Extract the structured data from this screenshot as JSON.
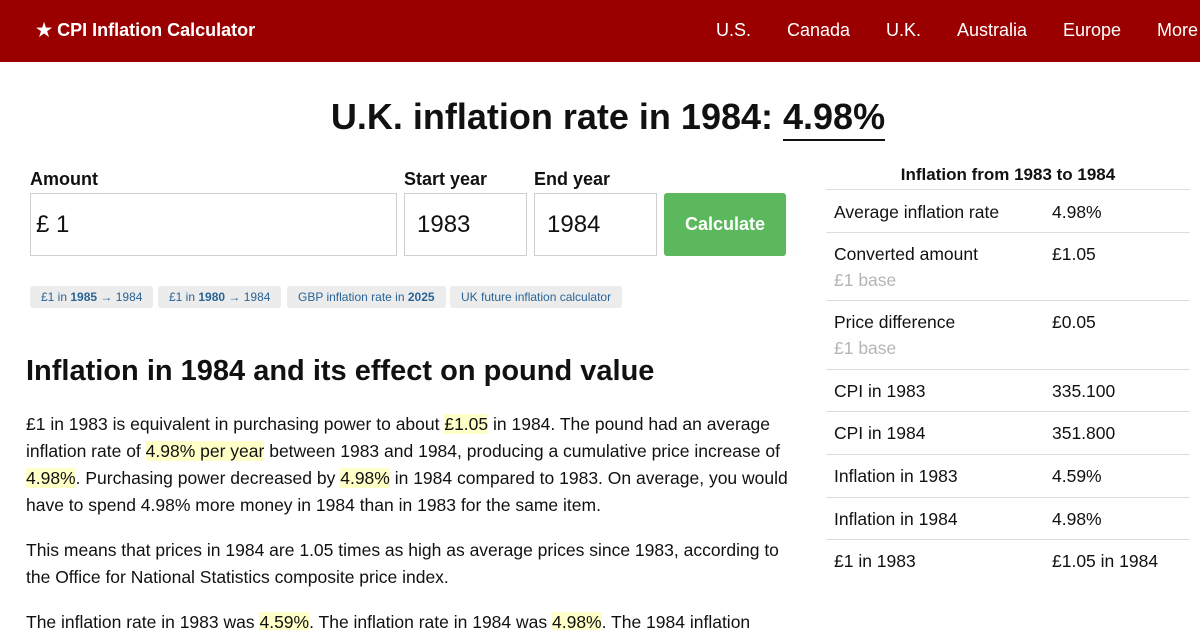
{
  "header": {
    "brand": "★ CPI Inflation Calculator",
    "nav": [
      "U.S.",
      "Canada",
      "U.K.",
      "Australia",
      "Europe",
      "More"
    ]
  },
  "headline": {
    "prefix": "U.K. inflation rate in 1984: ",
    "rate": "4.98%"
  },
  "form": {
    "amount_label": "Amount",
    "amount_value": "£ 1",
    "start_label": "Start year",
    "start_value": "1983",
    "end_label": "End year",
    "end_value": "1984",
    "calculate": "Calculate"
  },
  "chips": [
    {
      "pre": "£1 in ",
      "bold": "1985",
      "post": " → 1984"
    },
    {
      "pre": "£1 in ",
      "bold": "1980",
      "post": " → 1984"
    },
    {
      "pre": "GBP inflation rate in ",
      "bold": "2025",
      "post": ""
    },
    {
      "pre": "UK future inflation calculator",
      "bold": "",
      "post": ""
    }
  ],
  "article": {
    "title": "Inflation in 1984 and its effect on pound value",
    "p1": [
      {
        "t": "£1 in 1983 is equivalent in purchasing power to about ",
        "hl": false
      },
      {
        "t": "£1.05",
        "hl": true
      },
      {
        "t": " in 1984. The pound had an average inflation rate of ",
        "hl": false
      },
      {
        "t": "4.98% per year",
        "hl": true
      },
      {
        "t": " between 1983 and 1984, producing a cumulative price increase of ",
        "hl": false
      },
      {
        "t": "4.98%",
        "hl": true
      },
      {
        "t": ". Purchasing power decreased by ",
        "hl": false
      },
      {
        "t": "4.98%",
        "hl": true
      },
      {
        "t": " in 1984 compared to 1983. On average, you would have to spend 4.98% more money in 1984 than in 1983 for the same item.",
        "hl": false
      }
    ],
    "p2": "This means that prices in 1984 are 1.05 times as high as average prices since 1983, according to the Office for National Statistics composite price index.",
    "p3": [
      {
        "t": "The inflation rate in 1983 was ",
        "hl": false
      },
      {
        "t": "4.59%",
        "hl": true
      },
      {
        "t": ". The inflation rate in 1984 was ",
        "hl": false
      },
      {
        "t": "4.98%",
        "hl": true
      },
      {
        "t": ". The 1984 inflation",
        "hl": false
      }
    ]
  },
  "stats": {
    "title": "Inflation from 1983 to 1984",
    "rows": [
      {
        "label": "Average inflation rate",
        "sub": "",
        "value": "4.98%"
      },
      {
        "label": "Converted amount",
        "sub": "£1 base",
        "value": "£1.05"
      },
      {
        "label": "Price difference",
        "sub": "£1 base",
        "value": "£0.05"
      },
      {
        "label": "CPI in 1983",
        "sub": "",
        "value": "335.100"
      },
      {
        "label": "CPI in 1984",
        "sub": "",
        "value": "351.800"
      },
      {
        "label": "Inflation in 1983",
        "sub": "",
        "value": "4.59%"
      },
      {
        "label": "Inflation in 1984",
        "sub": "",
        "value": "4.98%"
      },
      {
        "label": "£1 in 1983",
        "sub": "",
        "value": "£1.05 in 1984"
      }
    ]
  },
  "colors": {
    "header_bg": "#9b0000",
    "button_bg": "#5cb85c",
    "highlight": "#ffffc8",
    "link": "#2a6496"
  }
}
